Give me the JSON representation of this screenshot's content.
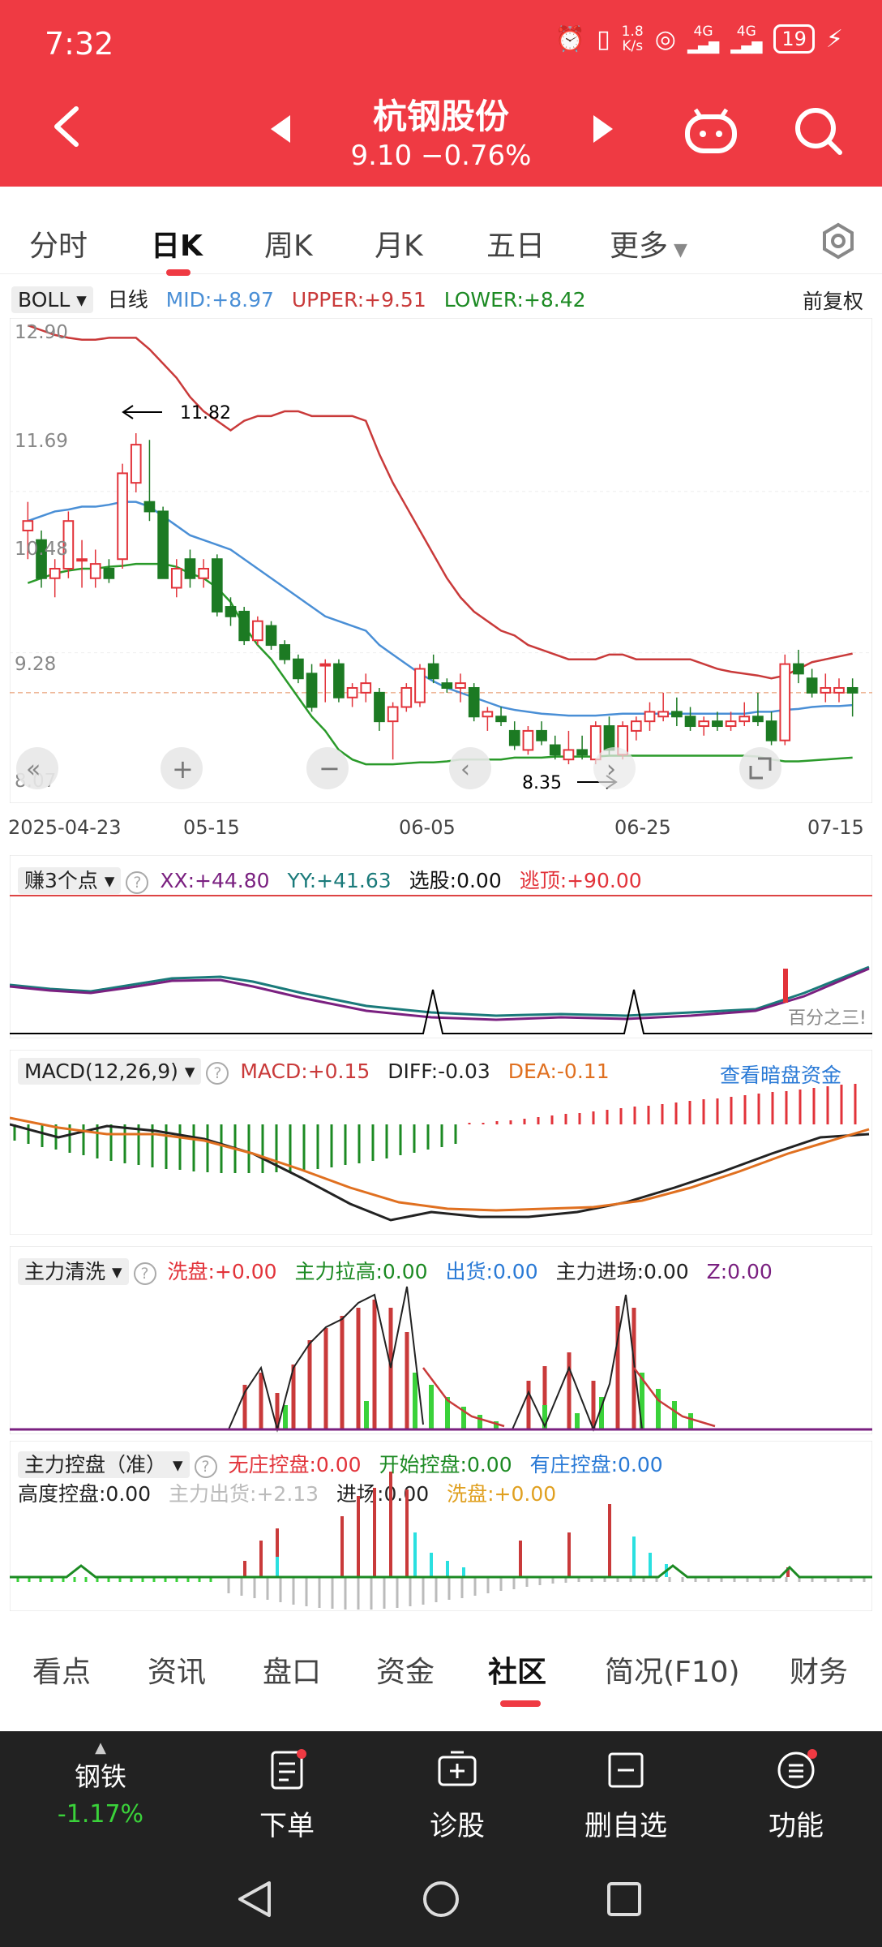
{
  "status_bar": {
    "time": "7:32",
    "speed_value": "1.8",
    "speed_unit": "K/s",
    "network1": "4G",
    "network2": "4G",
    "battery": "19"
  },
  "header": {
    "title": "杭钢股份",
    "subtitle": "9.10 −0.76%"
  },
  "period_tabs": [
    "分时",
    "日K",
    "周K",
    "月K",
    "五日",
    "更多"
  ],
  "active_period": "日K",
  "boll": {
    "name": "BOLL",
    "period": "日线",
    "mid": "MID:+8.97",
    "upper": "UPPER:+9.51",
    "lower": "LOWER:+8.42",
    "adjust": "前复权"
  },
  "price_axis": [
    "12.90",
    "11.69",
    "10.48",
    "9.28",
    "8.07"
  ],
  "date_axis": [
    "2025-04-23",
    "05-15",
    "06-05",
    "06-25",
    "07-15"
  ],
  "annotations": {
    "high": "11.82",
    "low": "8.35"
  },
  "colors": {
    "up": "#e2333a",
    "down": "#1c7a23",
    "mid": "#4a8fd6",
    "upper": "#c93a3a",
    "lower": "#2a9a2a",
    "brand": "#ef3a43"
  },
  "chart_data": {
    "type": "candlestick",
    "x_start": "2025-04-23",
    "x_end": "2025-07-15",
    "ylim": [
      8.07,
      12.9
    ],
    "candles": [
      {
        "o": 10.8,
        "h": 11.1,
        "l": 10.5,
        "c": 10.9
      },
      {
        "o": 10.7,
        "h": 10.8,
        "l": 10.2,
        "c": 10.3
      },
      {
        "o": 10.3,
        "h": 10.5,
        "l": 10.1,
        "c": 10.4
      },
      {
        "o": 10.4,
        "h": 11.0,
        "l": 10.3,
        "c": 10.9
      },
      {
        "o": 10.5,
        "h": 10.7,
        "l": 10.2,
        "c": 10.5
      },
      {
        "o": 10.3,
        "h": 10.6,
        "l": 10.2,
        "c": 10.45
      },
      {
        "o": 10.4,
        "h": 10.5,
        "l": 10.25,
        "c": 10.3
      },
      {
        "o": 10.5,
        "h": 11.5,
        "l": 10.4,
        "c": 11.4
      },
      {
        "o": 11.3,
        "h": 11.82,
        "l": 11.2,
        "c": 11.7
      },
      {
        "o": 11.1,
        "h": 11.75,
        "l": 10.9,
        "c": 11.0
      },
      {
        "o": 11.0,
        "h": 11.05,
        "l": 10.3,
        "c": 10.3
      },
      {
        "o": 10.2,
        "h": 10.5,
        "l": 10.1,
        "c": 10.4
      },
      {
        "o": 10.5,
        "h": 10.6,
        "l": 10.2,
        "c": 10.3
      },
      {
        "o": 10.3,
        "h": 10.5,
        "l": 10.2,
        "c": 10.4
      },
      {
        "o": 10.5,
        "h": 10.55,
        "l": 9.9,
        "c": 9.95
      },
      {
        "o": 10.0,
        "h": 10.1,
        "l": 9.8,
        "c": 9.9
      },
      {
        "o": 9.95,
        "h": 10.0,
        "l": 9.6,
        "c": 9.65
      },
      {
        "o": 9.65,
        "h": 9.9,
        "l": 9.6,
        "c": 9.85
      },
      {
        "o": 9.8,
        "h": 9.85,
        "l": 9.55,
        "c": 9.6
      },
      {
        "o": 9.6,
        "h": 9.65,
        "l": 9.4,
        "c": 9.45
      },
      {
        "o": 9.45,
        "h": 9.5,
        "l": 9.2,
        "c": 9.25
      },
      {
        "o": 9.3,
        "h": 9.4,
        "l": 8.9,
        "c": 8.95
      },
      {
        "o": 9.4,
        "h": 9.45,
        "l": 9.0,
        "c": 9.4
      },
      {
        "o": 9.4,
        "h": 9.45,
        "l": 9.0,
        "c": 9.05
      },
      {
        "o": 9.05,
        "h": 9.2,
        "l": 8.95,
        "c": 9.15
      },
      {
        "o": 9.1,
        "h": 9.3,
        "l": 9.0,
        "c": 9.2
      },
      {
        "o": 9.1,
        "h": 9.15,
        "l": 8.7,
        "c": 8.8
      },
      {
        "o": 8.8,
        "h": 9.0,
        "l": 8.4,
        "c": 8.95
      },
      {
        "o": 8.95,
        "h": 9.2,
        "l": 8.9,
        "c": 9.15
      },
      {
        "o": 9.0,
        "h": 9.4,
        "l": 8.95,
        "c": 9.35
      },
      {
        "o": 9.4,
        "h": 9.5,
        "l": 9.2,
        "c": 9.25
      },
      {
        "o": 9.2,
        "h": 9.25,
        "l": 9.1,
        "c": 9.15
      },
      {
        "o": 9.15,
        "h": 9.3,
        "l": 9.0,
        "c": 9.2
      },
      {
        "o": 9.15,
        "h": 9.2,
        "l": 8.8,
        "c": 8.85
      },
      {
        "o": 8.85,
        "h": 8.95,
        "l": 8.7,
        "c": 8.9
      },
      {
        "o": 8.85,
        "h": 8.95,
        "l": 8.75,
        "c": 8.8
      },
      {
        "o": 8.7,
        "h": 8.8,
        "l": 8.5,
        "c": 8.55
      },
      {
        "o": 8.5,
        "h": 8.75,
        "l": 8.45,
        "c": 8.7
      },
      {
        "o": 8.7,
        "h": 8.8,
        "l": 8.55,
        "c": 8.6
      },
      {
        "o": 8.55,
        "h": 8.65,
        "l": 8.4,
        "c": 8.45
      },
      {
        "o": 8.4,
        "h": 8.7,
        "l": 8.35,
        "c": 8.5
      },
      {
        "o": 8.5,
        "h": 8.65,
        "l": 8.4,
        "c": 8.45
      },
      {
        "o": 8.4,
        "h": 8.8,
        "l": 8.35,
        "c": 8.75
      },
      {
        "o": 8.75,
        "h": 8.85,
        "l": 8.45,
        "c": 8.5
      },
      {
        "o": 8.45,
        "h": 8.8,
        "l": 8.4,
        "c": 8.75
      },
      {
        "o": 8.7,
        "h": 8.85,
        "l": 8.6,
        "c": 8.8
      },
      {
        "o": 8.8,
        "h": 9.0,
        "l": 8.7,
        "c": 8.9
      },
      {
        "o": 8.85,
        "h": 9.1,
        "l": 8.8,
        "c": 8.9
      },
      {
        "o": 8.9,
        "h": 9.05,
        "l": 8.75,
        "c": 8.85
      },
      {
        "o": 8.85,
        "h": 8.95,
        "l": 8.7,
        "c": 8.75
      },
      {
        "o": 8.75,
        "h": 8.85,
        "l": 8.65,
        "c": 8.8
      },
      {
        "o": 8.8,
        "h": 8.9,
        "l": 8.7,
        "c": 8.75
      },
      {
        "o": 8.75,
        "h": 8.9,
        "l": 8.7,
        "c": 8.8
      },
      {
        "o": 8.8,
        "h": 9.0,
        "l": 8.75,
        "c": 8.85
      },
      {
        "o": 8.85,
        "h": 9.1,
        "l": 8.75,
        "c": 8.8
      },
      {
        "o": 8.8,
        "h": 8.9,
        "l": 8.55,
        "c": 8.6
      },
      {
        "o": 8.6,
        "h": 9.5,
        "l": 8.55,
        "c": 9.4
      },
      {
        "o": 9.4,
        "h": 9.55,
        "l": 9.2,
        "c": 9.3
      },
      {
        "o": 9.25,
        "h": 9.35,
        "l": 9.05,
        "c": 9.1
      },
      {
        "o": 9.1,
        "h": 9.3,
        "l": 9.0,
        "c": 9.15
      },
      {
        "o": 9.1,
        "h": 9.25,
        "l": 9.0,
        "c": 9.15
      },
      {
        "o": 9.15,
        "h": 9.25,
        "l": 8.85,
        "c": 9.1
      }
    ],
    "boll_upper": [
      12.95,
      12.9,
      12.85,
      12.82,
      12.8,
      12.8,
      12.82,
      12.82,
      12.82,
      12.7,
      12.55,
      12.4,
      12.2,
      12.05,
      11.95,
      11.85,
      11.95,
      12.0,
      12.0,
      12.05,
      12.05,
      12.0,
      12.0,
      12.0,
      12.0,
      11.95,
      11.6,
      11.3,
      11.05,
      10.8,
      10.55,
      10.3,
      10.1,
      9.95,
      9.85,
      9.75,
      9.7,
      9.6,
      9.55,
      9.5,
      9.45,
      9.45,
      9.45,
      9.5,
      9.5,
      9.45,
      9.45,
      9.45,
      9.45,
      9.45,
      9.4,
      9.35,
      9.32,
      9.3,
      9.28,
      9.25,
      9.28,
      9.35,
      9.42,
      9.45,
      9.48,
      9.51
    ],
    "boll_mid": [
      10.9,
      10.95,
      11.0,
      11.02,
      11.05,
      11.05,
      11.07,
      11.1,
      11.1,
      11.05,
      10.95,
      10.85,
      10.75,
      10.7,
      10.65,
      10.6,
      10.5,
      10.4,
      10.3,
      10.2,
      10.1,
      10.0,
      9.9,
      9.85,
      9.8,
      9.75,
      9.6,
      9.5,
      9.4,
      9.3,
      9.22,
      9.15,
      9.1,
      9.05,
      9.0,
      8.95,
      8.92,
      8.9,
      8.88,
      8.87,
      8.86,
      8.86,
      8.86,
      8.87,
      8.88,
      8.88,
      8.88,
      8.88,
      8.88,
      8.88,
      8.88,
      8.88,
      8.88,
      8.88,
      8.9,
      8.9,
      8.92,
      8.93,
      8.95,
      8.96,
      8.96,
      8.97
    ],
    "boll_lower": [
      10.25,
      10.3,
      10.35,
      10.38,
      10.4,
      10.4,
      10.42,
      10.43,
      10.45,
      10.45,
      10.45,
      10.42,
      10.35,
      10.3,
      10.2,
      10.05,
      9.8,
      9.6,
      9.45,
      9.25,
      9.05,
      8.85,
      8.7,
      8.5,
      8.4,
      8.35,
      8.35,
      8.35,
      8.36,
      8.37,
      8.37,
      8.38,
      8.4,
      8.4,
      8.4,
      8.4,
      8.42,
      8.42,
      8.42,
      8.43,
      8.43,
      8.43,
      8.43,
      8.44,
      8.44,
      8.44,
      8.44,
      8.44,
      8.44,
      8.44,
      8.44,
      8.44,
      8.44,
      8.44,
      8.43,
      8.4,
      8.38,
      8.38,
      8.39,
      8.4,
      8.41,
      8.42
    ]
  },
  "ind1": {
    "name": "赚3个点",
    "xx": "XX:+44.80",
    "yy": "YY:+41.63",
    "select": "选股:0.00",
    "escape": "逃顶:+90.00",
    "note": "百分之三!"
  },
  "ind2": {
    "name": "MACD(12,26,9)",
    "macd": "MACD:+0.15",
    "diff": "DIFF:-0.03",
    "dea": "DEA:-0.11",
    "link": "查看暗盘资金"
  },
  "ind3": {
    "name": "主力清洗",
    "wash": "洗盘:+0.00",
    "lift": "主力拉高:0.00",
    "ship": "出货:0.00",
    "enter": "主力进场:0.00",
    "z": "Z:0.00"
  },
  "ind4": {
    "name": "主力控盘（准）",
    "none": "无庄控盘:0.00",
    "start": "开始控盘:0.00",
    "has": "有庄控盘:0.00",
    "high": "高度控盘:0.00",
    "out": "主力出货:+2.13",
    "in": "进场:0.00",
    "wash": "洗盘:+0.00"
  },
  "bottom_tabs": [
    "看点",
    "资讯",
    "盘口",
    "资金",
    "社区",
    "简况(F10)",
    "财务"
  ],
  "active_bottom_tab": "社区",
  "toolbar": {
    "sector": "钢铁",
    "sector_change": "-1.17%",
    "order": "下单",
    "diagnose": "诊股",
    "remove": "删自选",
    "function": "功能"
  }
}
